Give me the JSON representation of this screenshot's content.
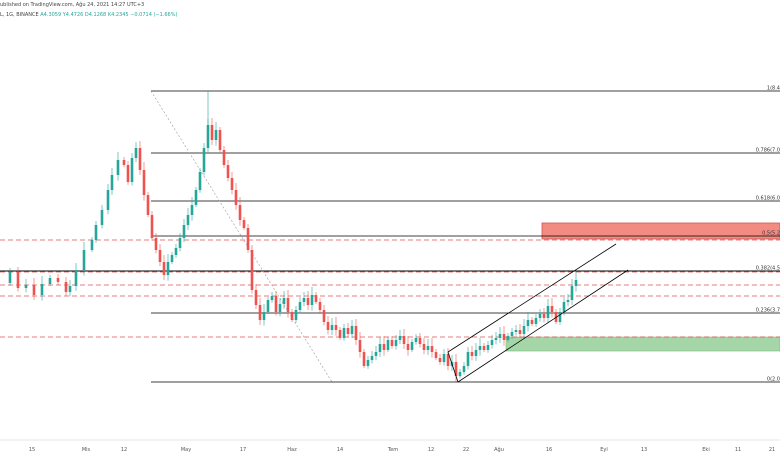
{
  "header": {
    "published": "ublished on TradingView.com, Ağu 24, 2021 14:27 UTC+3",
    "symbol": "L, 1G, BINANCE",
    "ohlc": "A4.3059 Y4.4726 D4.1268 K4.2345 −0.0714 (−1.66%)"
  },
  "colors": {
    "up": "#26a69a",
    "down": "#ef5350",
    "resistance_zone": "#f28b82",
    "support_zone": "#a5d6a7",
    "dashed_level": "#e05252",
    "fib_line": "#000000"
  },
  "fib_levels": [
    {
      "label": "1(8.4"
    },
    {
      "label": "0.786(7.0"
    },
    {
      "label": "0.618(6.0"
    },
    {
      "label": "0.5(5.2"
    },
    {
      "label": "0.382(4.5"
    },
    {
      "label": "0.236(3.7"
    },
    {
      "label": "0(2.0"
    }
  ],
  "x_ticks": [
    "15",
    "Mis",
    "12",
    "May",
    "17",
    "Haz",
    "14",
    "Tem",
    "12",
    "22",
    "Ağu",
    "16",
    "Eyl",
    "13",
    "Eki",
    "11",
    "21"
  ],
  "chart_data": {
    "type": "candlestick",
    "title": "",
    "xlabel": "",
    "ylabel": "",
    "zones": [
      "resistance",
      "support"
    ],
    "channel": "ascending",
    "grid": false
  }
}
